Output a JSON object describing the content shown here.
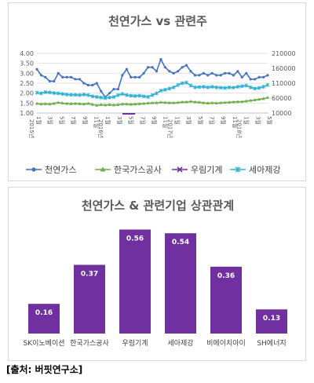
{
  "chart_data": [
    {
      "type": "line",
      "title": "천연가스 vs 관련주",
      "y_left": {
        "min": 1.0,
        "max": 4.0,
        "ticks": [
          "1.00",
          "1.50",
          "2.00",
          "2.50",
          "3.00",
          "3.50",
          "4.00"
        ]
      },
      "y_right": {
        "min": 10000,
        "max": 210000,
        "ticks": [
          "10000",
          "60000",
          "110000",
          "160000",
          "210000"
        ]
      },
      "x_tick_labels": [
        "1월",
        "3월",
        "5월",
        "7월",
        "9월",
        "11월",
        "1월",
        "3월",
        "5월",
        "7월",
        "9월",
        "11월",
        "1월",
        "3월",
        "5월",
        "7월",
        "9월",
        "11월",
        "1월",
        "3월",
        "5월"
      ],
      "x_year_labels": [
        "2015년",
        "2016년",
        "2017년",
        "2018년"
      ],
      "series": [
        {
          "name": "천연가스",
          "axis": "left",
          "color": "#4472c4",
          "values": [
            3.2,
            2.9,
            2.8,
            2.6,
            2.6,
            3.0,
            2.8,
            2.8,
            2.8,
            2.7,
            2.7,
            2.5,
            2.4,
            2.4,
            2.5,
            2.1,
            1.8,
            2.0,
            2.2,
            2.2,
            2.9,
            3.2,
            2.8,
            2.8,
            2.8,
            3.0,
            3.3,
            3.3,
            3.1,
            3.7,
            3.3,
            3.1,
            3.0,
            3.1,
            3.3,
            3.4,
            3.1,
            2.9,
            2.9,
            3.0,
            2.9,
            3.0,
            2.9,
            2.9,
            3.0,
            3.0,
            2.9,
            3.1,
            2.8,
            3.0,
            2.7,
            2.7,
            2.8,
            2.8,
            2.9
          ]
        },
        {
          "name": "한국가스공사",
          "axis": "right",
          "color": "#70ad47",
          "values": [
            42000,
            40000,
            41000,
            40000,
            42000,
            45000,
            43000,
            42000,
            41000,
            42000,
            41000,
            40000,
            42000,
            39000,
            36000,
            38000,
            37000,
            38000,
            37000,
            38000,
            40000,
            40000,
            39000,
            40000,
            41000,
            42000,
            43000,
            44000,
            44000,
            46000,
            45000,
            44000,
            44000,
            45000,
            47000,
            47000,
            49000,
            47000,
            46000,
            44000,
            43000,
            44000,
            43000,
            44000,
            45000,
            46000,
            47000,
            48000,
            48000,
            50000,
            52000,
            54000,
            56000,
            58000,
            62000
          ]
        },
        {
          "name": "우림기계",
          "axis": "right",
          "color": "#7030a0",
          "values": [
            0,
            0,
            0,
            0,
            0,
            0,
            0,
            0,
            0,
            0,
            0,
            0,
            0,
            0,
            0,
            0,
            0,
            0,
            0,
            0,
            0,
            0,
            0,
            0,
            0,
            0,
            0,
            0,
            0,
            0,
            0,
            0,
            0,
            0,
            0,
            0,
            0,
            0,
            0,
            0,
            0,
            0,
            0,
            0,
            0,
            0,
            0,
            0,
            0,
            0,
            0,
            0,
            0,
            0,
            0
          ]
        },
        {
          "name": "세아제강",
          "axis": "right",
          "color": "#31b0d5",
          "values": [
            78000,
            76000,
            80000,
            79000,
            77000,
            76000,
            74000,
            72000,
            71000,
            71000,
            70000,
            72000,
            70000,
            66000,
            64000,
            62000,
            60000,
            62000,
            64000,
            70000,
            74000,
            70000,
            68000,
            67000,
            68000,
            66000,
            64000,
            70000,
            76000,
            85000,
            88000,
            92000,
            96000,
            104000,
            110000,
            112000,
            102000,
            96000,
            97000,
            98000,
            96000,
            98000,
            96000,
            95000,
            94000,
            96000,
            95000,
            98000,
            100000,
            102000,
            96000,
            92000,
            94000,
            98000,
            104000
          ]
        }
      ]
    },
    {
      "type": "bar",
      "title": "천연가스 & 관련기업 상관관계",
      "categories": [
        "SK이노베이션",
        "한국가스공사",
        "우림기계",
        "세아제강",
        "비에이치아이",
        "SH에너지"
      ],
      "values": [
        0.16,
        0.37,
        0.56,
        0.54,
        0.36,
        0.13
      ],
      "value_labels": [
        "0.16",
        "0.37",
        "0.56",
        "0.54",
        "0.36",
        "0.13"
      ],
      "color": "#7030a0",
      "ylim": [
        0,
        0.6
      ]
    }
  ],
  "source": "[출처: 버핏연구소]"
}
